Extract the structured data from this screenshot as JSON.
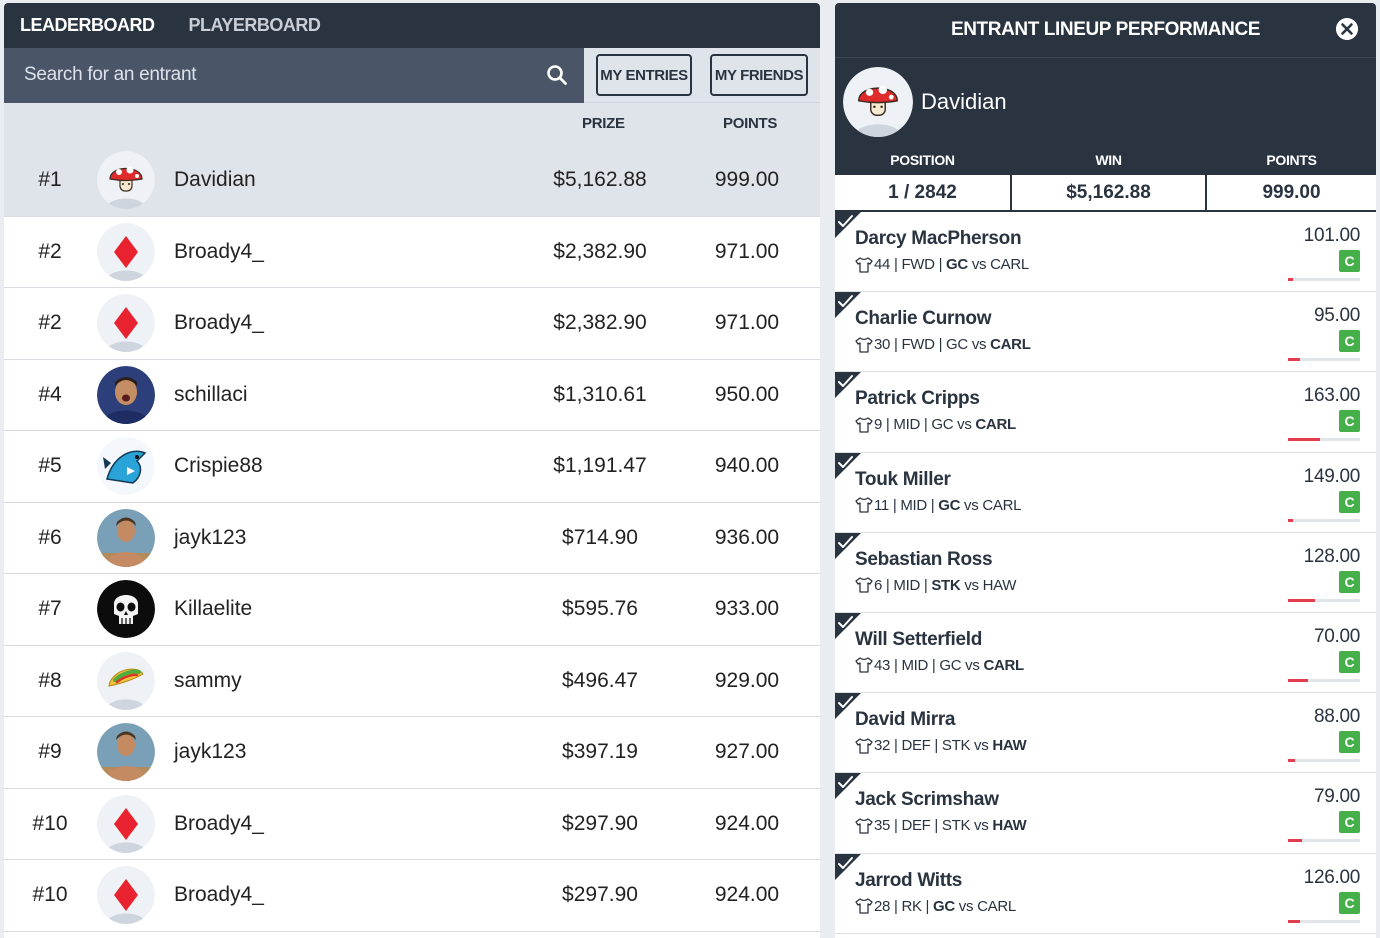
{
  "tabs": {
    "leaderboard": "LEADERBOARD",
    "playerboard": "PLAYERBOARD"
  },
  "search": {
    "placeholder": "Search for an entrant",
    "icon": "search-icon"
  },
  "buttons": {
    "my_entries": "MY ENTRIES",
    "my_friends": "MY FRIENDS"
  },
  "columns": {
    "prize": "PRIZE",
    "points": "POINTS"
  },
  "leaderboard": [
    {
      "rank": "#1",
      "avatar": "mushroom",
      "name": "Davidian",
      "prize": "$5,162.88",
      "points": "999.00"
    },
    {
      "rank": "#2",
      "avatar": "diamond",
      "name": "Broady4_",
      "prize": "$2,382.90",
      "points": "971.00"
    },
    {
      "rank": "#2",
      "avatar": "diamond",
      "name": "Broady4_",
      "prize": "$2,382.90",
      "points": "971.00"
    },
    {
      "rank": "#4",
      "avatar": "photo-player",
      "name": "schillaci",
      "prize": "$1,310.61",
      "points": "950.00"
    },
    {
      "rank": "#5",
      "avatar": "shark",
      "name": "Crispie88",
      "prize": "$1,191.47",
      "points": "940.00"
    },
    {
      "rank": "#6",
      "avatar": "photo-man",
      "name": "jayk123",
      "prize": "$714.90",
      "points": "936.00"
    },
    {
      "rank": "#7",
      "avatar": "skull",
      "name": "Killaelite",
      "prize": "$595.76",
      "points": "933.00"
    },
    {
      "rank": "#8",
      "avatar": "taco",
      "name": "sammy",
      "prize": "$496.47",
      "points": "929.00"
    },
    {
      "rank": "#9",
      "avatar": "photo-man",
      "name": "jayk123",
      "prize": "$397.19",
      "points": "927.00"
    },
    {
      "rank": "#10",
      "avatar": "diamond",
      "name": "Broady4_",
      "prize": "$297.90",
      "points": "924.00"
    },
    {
      "rank": "#10",
      "avatar": "diamond",
      "name": "Broady4_",
      "prize": "$297.90",
      "points": "924.00"
    }
  ],
  "panel": {
    "title": "ENTRANT LINEUP PERFORMANCE",
    "entrant": "Davidian",
    "stats": [
      {
        "label": "POSITION",
        "value": "1 / 2842"
      },
      {
        "label": "WIN",
        "value": "$5,162.88"
      },
      {
        "label": "POINTS",
        "value": "999.00"
      }
    ],
    "players": [
      {
        "name": "Darcy MacPherson",
        "number": "44",
        "pos": "FWD",
        "home": "GC",
        "away": "CARL",
        "bold_team": "home",
        "points": "101.00",
        "cap": "C",
        "progress": 0.07
      },
      {
        "name": "Charlie Curnow",
        "number": "30",
        "pos": "FWD",
        "home": "GC",
        "away": "CARL",
        "bold_team": "away",
        "points": "95.00",
        "cap": "C",
        "progress": 0.16
      },
      {
        "name": "Patrick Cripps",
        "number": "9",
        "pos": "MID",
        "home": "GC",
        "away": "CARL",
        "bold_team": "away",
        "points": "163.00",
        "cap": "C",
        "progress": 0.45
      },
      {
        "name": "Touk Miller",
        "number": "11",
        "pos": "MID",
        "home": "GC",
        "away": "CARL",
        "bold_team": "home",
        "points": "149.00",
        "cap": "C",
        "progress": 0.07
      },
      {
        "name": "Sebastian Ross",
        "number": "6",
        "pos": "MID",
        "home": "STK",
        "away": "HAW",
        "bold_team": "home",
        "points": "128.00",
        "cap": "C",
        "progress": 0.38
      },
      {
        "name": "Will Setterfield",
        "number": "43",
        "pos": "MID",
        "home": "GC",
        "away": "CARL",
        "bold_team": "away",
        "points": "70.00",
        "cap": "C",
        "progress": 0.28
      },
      {
        "name": "David Mirra",
        "number": "32",
        "pos": "DEF",
        "home": "STK",
        "away": "HAW",
        "bold_team": "away",
        "points": "88.00",
        "cap": "C",
        "progress": 0.1
      },
      {
        "name": "Jack Scrimshaw",
        "number": "35",
        "pos": "DEF",
        "home": "STK",
        "away": "HAW",
        "bold_team": "away",
        "points": "79.00",
        "cap": "C",
        "progress": 0.19
      },
      {
        "name": "Jarrod Witts",
        "number": "28",
        "pos": "RK",
        "home": "GC",
        "away": "CARL",
        "bold_team": "home",
        "points": "126.00",
        "cap": "C",
        "progress": 0.17
      }
    ]
  },
  "colors": {
    "navy": "#2a3340",
    "slate": "#4a5567",
    "captain_green": "#45b04a",
    "progress_red": "#e23d4d",
    "diamond_red": "#e8232f"
  }
}
